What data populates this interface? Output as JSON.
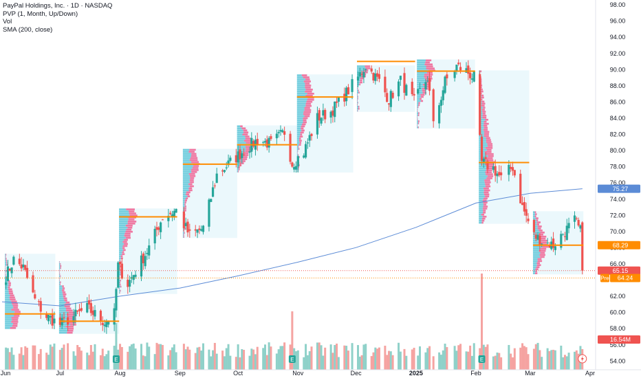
{
  "header": {
    "title": "PayPal Holdings, Inc. · 1D · NASDAQ",
    "indicators": [
      "PVP (1, Month, Up/Down)",
      "Vol",
      "SMA (200, close)"
    ]
  },
  "colors": {
    "up": "#26a69a",
    "down": "#ef5350",
    "vol_up": "#8fd1c9",
    "vol_down": "#f5a3a1",
    "vp_up": "#5fc7d8",
    "vp_down": "#f06292",
    "vp_box": "#e6f6fb",
    "poc": "#ff8c00",
    "sma": "#5b8bd6",
    "last_price_bg": "#ef5350",
    "sma_badge_bg": "#5b8bd6",
    "poc_badge_bg": "#ff8c00",
    "axis_text": "#131722"
  },
  "price_axis": {
    "ticks": [
      "98.00",
      "96.00",
      "94.00",
      "92.00",
      "90.00",
      "88.00",
      "86.00",
      "84.00",
      "82.00",
      "80.00",
      "78.00",
      "76.00",
      "74.00",
      "72.00",
      "70.00",
      "68.00",
      "66.00",
      "64.00",
      "62.00",
      "60.00",
      "58.00",
      "56.00",
      "54.00"
    ],
    "range": [
      53.5,
      98.5
    ]
  },
  "time_axis": {
    "labels": [
      "Jun",
      "Jul",
      "Aug",
      "Sep",
      "Oct",
      "Nov",
      "Dec",
      "2025",
      "Feb",
      "Mar",
      "Apr"
    ]
  },
  "badges": {
    "sma": "75.27",
    "poc": "68.29",
    "last": "65.15",
    "pre_label": "Pre",
    "pre": "64.24",
    "volume": "16.54M"
  },
  "earnings_marker": "E",
  "chart_data": {
    "type": "candlestick",
    "title": "PayPal Holdings, Inc. · 1D · NASDAQ",
    "x_range": [
      "2024-06-01",
      "2025-04-01"
    ],
    "y_range": [
      53.5,
      98.5
    ],
    "price_keypoints": [
      {
        "date": "2024-06-03",
        "close": 64.5
      },
      {
        "date": "2024-06-07",
        "close": 66.5
      },
      {
        "date": "2024-06-12",
        "close": 65.5
      },
      {
        "date": "2024-06-18",
        "close": 61.5
      },
      {
        "date": "2024-06-24",
        "close": 59.5
      },
      {
        "date": "2024-07-01",
        "close": 58.5
      },
      {
        "date": "2024-07-15",
        "close": 60.5
      },
      {
        "date": "2024-07-24",
        "close": 58.8
      },
      {
        "date": "2024-07-29",
        "close": 59.8
      },
      {
        "date": "2024-07-31",
        "close": 65.8
      },
      {
        "date": "2024-08-05",
        "close": 63.5
      },
      {
        "date": "2024-08-16",
        "close": 68.0
      },
      {
        "date": "2024-08-23",
        "close": 71.8
      },
      {
        "date": "2024-08-30",
        "close": 72.6
      },
      {
        "date": "2024-09-06",
        "close": 69.5
      },
      {
        "date": "2024-09-13",
        "close": 70.4
      },
      {
        "date": "2024-09-20",
        "close": 77.0
      },
      {
        "date": "2024-09-27",
        "close": 78.5
      },
      {
        "date": "2024-10-04",
        "close": 80.0
      },
      {
        "date": "2024-10-11",
        "close": 81.3
      },
      {
        "date": "2024-10-18",
        "close": 80.8
      },
      {
        "date": "2024-10-25",
        "close": 82.3
      },
      {
        "date": "2024-10-29",
        "close": 78.4
      },
      {
        "date": "2024-11-04",
        "close": 79.8
      },
      {
        "date": "2024-11-11",
        "close": 84.0
      },
      {
        "date": "2024-11-18",
        "close": 84.8
      },
      {
        "date": "2024-11-25",
        "close": 86.8
      },
      {
        "date": "2024-12-02",
        "close": 89.0
      },
      {
        "date": "2024-12-06",
        "close": 90.5
      },
      {
        "date": "2024-12-13",
        "close": 88.5
      },
      {
        "date": "2024-12-18",
        "close": 86.3
      },
      {
        "date": "2024-12-24",
        "close": 88.6
      },
      {
        "date": "2024-12-31",
        "close": 86.0
      },
      {
        "date": "2025-01-07",
        "close": 89.0
      },
      {
        "date": "2025-01-10",
        "close": 83.0
      },
      {
        "date": "2025-01-16",
        "close": 88.5
      },
      {
        "date": "2025-01-22",
        "close": 90.4
      },
      {
        "date": "2025-01-27",
        "close": 89.8
      },
      {
        "date": "2025-01-31",
        "close": 89.0
      },
      {
        "date": "2025-02-04",
        "close": 78.5
      },
      {
        "date": "2025-02-10",
        "close": 77.8
      },
      {
        "date": "2025-02-14",
        "close": 76.5
      },
      {
        "date": "2025-02-20",
        "close": 78.0
      },
      {
        "date": "2025-02-25",
        "close": 73.0
      },
      {
        "date": "2025-03-03",
        "close": 69.5
      },
      {
        "date": "2025-03-07",
        "close": 68.8
      },
      {
        "date": "2025-03-13",
        "close": 68.3
      },
      {
        "date": "2025-03-19",
        "close": 70.0
      },
      {
        "date": "2025-03-24",
        "close": 71.3
      },
      {
        "date": "2025-03-27",
        "close": 70.0
      },
      {
        "date": "2025-03-28",
        "close": 65.15
      }
    ],
    "sma_200": [
      {
        "date": "2024-06-01",
        "value": 61.3
      },
      {
        "date": "2024-07-01",
        "value": 60.8
      },
      {
        "date": "2024-08-01",
        "value": 62.0
      },
      {
        "date": "2024-09-01",
        "value": 63.0
      },
      {
        "date": "2024-10-01",
        "value": 64.5
      },
      {
        "date": "2024-11-01",
        "value": 66.2
      },
      {
        "date": "2024-12-01",
        "value": 68.0
      },
      {
        "date": "2025-01-01",
        "value": 70.5
      },
      {
        "date": "2025-02-01",
        "value": 73.5
      },
      {
        "date": "2025-03-01",
        "value": 74.7
      },
      {
        "date": "2025-03-28",
        "value": 75.27
      }
    ],
    "volume_profile_poc": [
      {
        "month": "2024-06",
        "price": 59.8
      },
      {
        "month": "2024-07",
        "price": 58.9
      },
      {
        "month": "2024-08",
        "price": 71.8
      },
      {
        "month": "2024-09",
        "price": 78.3
      },
      {
        "month": "2024-10",
        "price": 80.7
      },
      {
        "month": "2024-11",
        "price": 86.6
      },
      {
        "month": "2024-12",
        "price": 91.0
      },
      {
        "month": "2025-01",
        "price": 89.8
      },
      {
        "month": "2025-02",
        "price": 78.5
      },
      {
        "month": "2025-03",
        "price": 68.29
      }
    ],
    "last_price": 65.15,
    "pre_market_price": 64.24,
    "sma_last": 75.27,
    "last_volume": "16.54M",
    "earnings_dates": [
      "2024-07-30",
      "2024-10-29",
      "2025-02-04"
    ],
    "volume_spike_dates": [
      "2024-07-30",
      "2024-10-29",
      "2025-02-04"
    ]
  }
}
